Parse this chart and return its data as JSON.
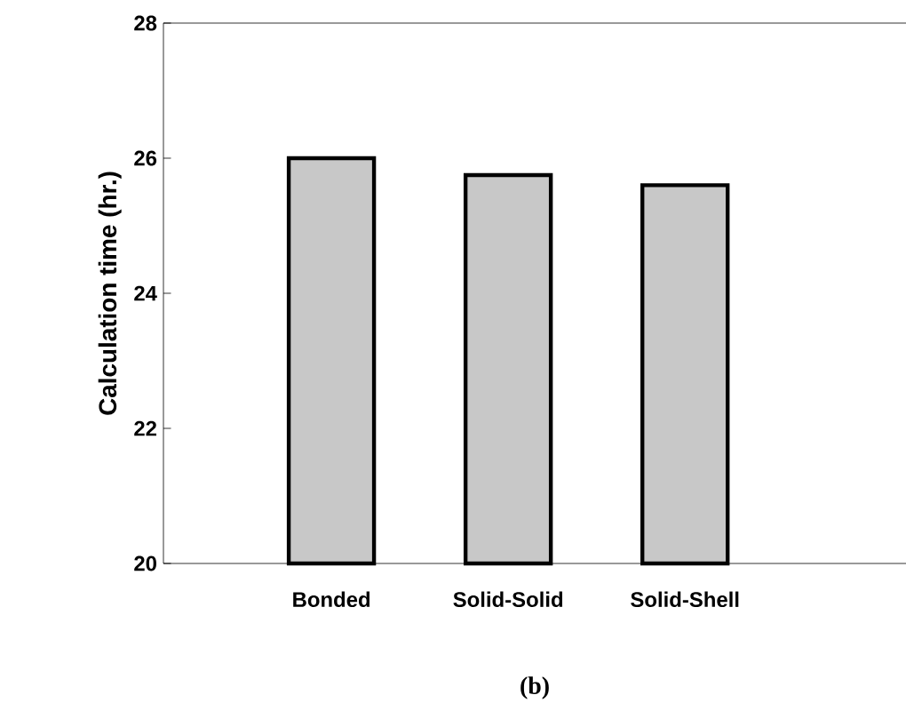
{
  "chart_data": {
    "type": "bar",
    "ylabel": "Calculation time (hr.)",
    "categories": [
      "Bonded",
      "Solid-Solid",
      "Solid-Shell"
    ],
    "values": [
      26.0,
      25.75,
      25.6
    ],
    "color": "#c8c8c8",
    "ylim": [
      20,
      28
    ],
    "yticks": [
      20,
      22,
      24,
      26,
      28
    ],
    "annotations": [
      "(b)"
    ]
  }
}
